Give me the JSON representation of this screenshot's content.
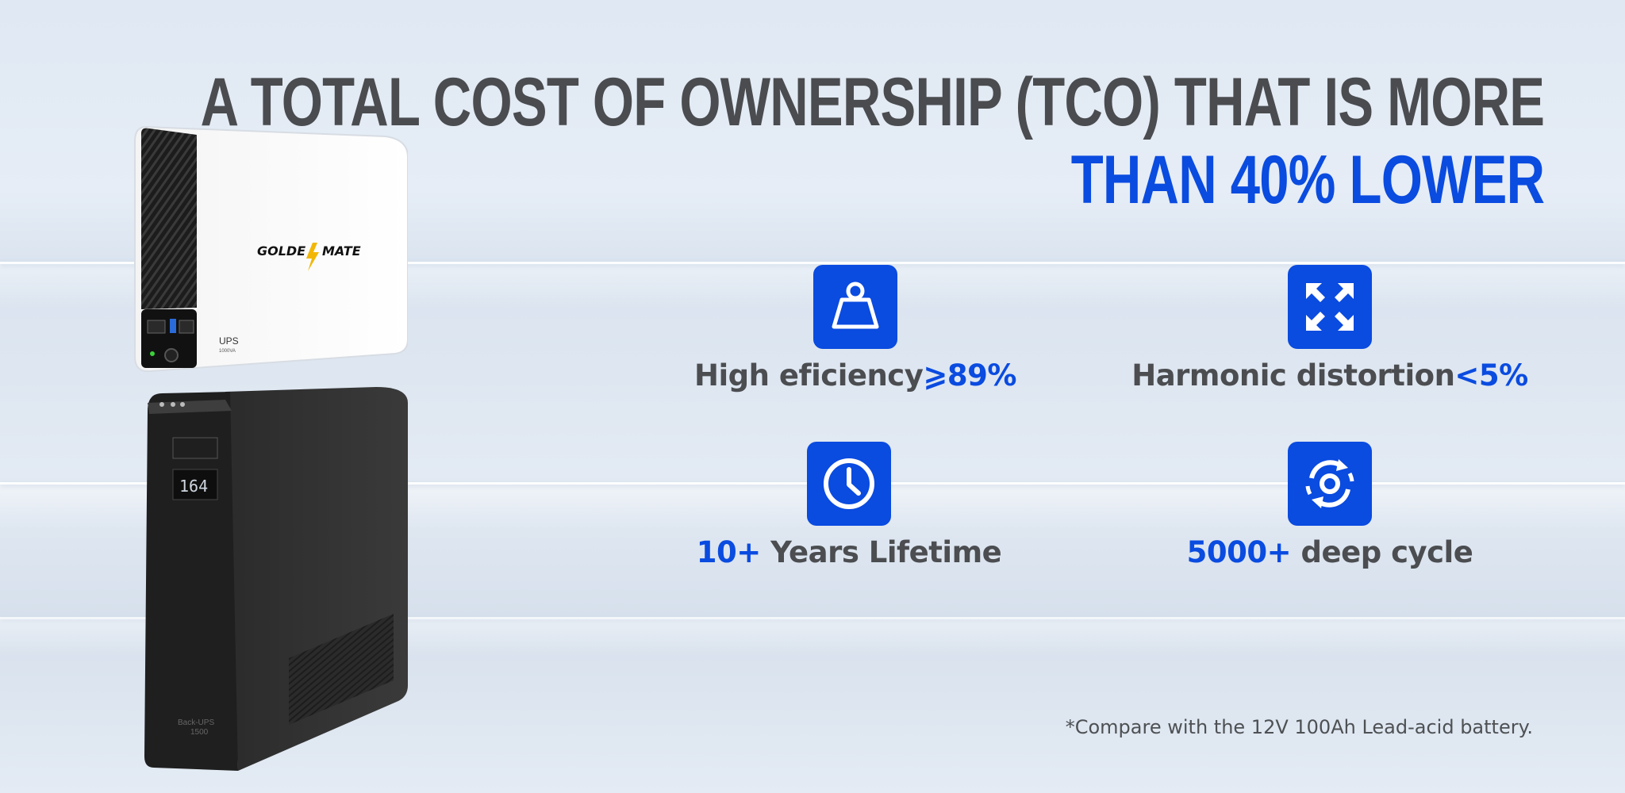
{
  "headline": {
    "line1": "A TOTAL COST OF OWNERSHIP (TCO) THAT IS MORE",
    "line2": "THAN 40% LOWER"
  },
  "features": [
    {
      "icon": "weight-icon",
      "text": "High eficiency",
      "accent": "⩾89%",
      "accent_first": false
    },
    {
      "icon": "expand-arrows-icon",
      "text": "Harmonic distortion",
      "accent": "<5%",
      "accent_first": false
    },
    {
      "icon": "clock-icon",
      "text": " Years Lifetime",
      "accent": "10+",
      "accent_first": true
    },
    {
      "icon": "cycle-icon",
      "text": " deep cycle",
      "accent": "5000+",
      "accent_first": true
    }
  ],
  "footnote": "*Compare with the 12V 100Ah Lead-acid battery.",
  "products": {
    "white_unit": {
      "brand": "GOLDENMATE",
      "model": "UPS",
      "rating": "1000VA"
    },
    "black_unit": {
      "model": "Back-UPS",
      "rating": "1500",
      "display": "164"
    }
  },
  "colors": {
    "accent": "#0a4be0",
    "heading": "#4a4c4f",
    "text": "#4b4d50"
  }
}
